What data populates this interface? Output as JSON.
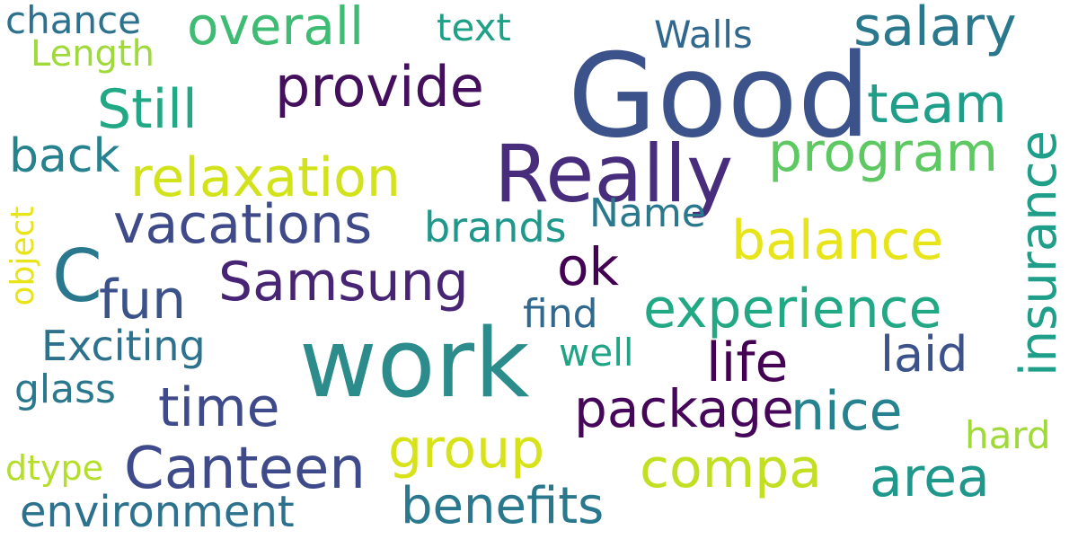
{
  "words": {
    "good": {
      "text": "Good",
      "color": "#3b528b"
    },
    "really": {
      "text": "Really",
      "color": "#472d7b"
    },
    "work": {
      "text": "work",
      "color": "#2c8c8c"
    },
    "c": {
      "text": "C",
      "color": "#2a788e"
    },
    "samsung": {
      "text": "Samsung",
      "color": "#482475"
    },
    "canteen": {
      "text": "Canteen",
      "color": "#3e4a89"
    },
    "vacations": {
      "text": "vacations",
      "color": "#3e4a89"
    },
    "relaxation": {
      "text": "relaxation",
      "color": "#d2e21b"
    },
    "overall": {
      "text": "overall",
      "color": "#3fbc73"
    },
    "provide": {
      "text": "provide",
      "color": "#440f5c"
    },
    "still": {
      "text": "Still",
      "color": "#22a884"
    },
    "salary": {
      "text": "salary",
      "color": "#2a788e"
    },
    "team": {
      "text": "team",
      "color": "#1f9e89"
    },
    "program": {
      "text": "program",
      "color": "#5ec962"
    },
    "insurance": {
      "text": "insurance",
      "color": "#1f9e89"
    },
    "balance": {
      "text": "balance",
      "color": "#e7e419"
    },
    "experience": {
      "text": "experience",
      "color": "#22a884"
    },
    "life": {
      "text": "life",
      "color": "#440154"
    },
    "package": {
      "text": "package",
      "color": "#46075a"
    },
    "nice": {
      "text": "nice",
      "color": "#26828e"
    },
    "laid": {
      "text": "laid",
      "color": "#3b528b"
    },
    "area": {
      "text": "area",
      "color": "#1f988b"
    },
    "compa": {
      "text": "compa",
      "color": "#c2df23"
    },
    "group": {
      "text": "group",
      "color": "#d8e219"
    },
    "benefits": {
      "text": "benefits",
      "color": "#2a788e"
    },
    "environment": {
      "text": "environment",
      "color": "#2c728e"
    },
    "time": {
      "text": "time",
      "color": "#3e4a89"
    },
    "fun": {
      "text": "fun",
      "color": "#3b528b"
    },
    "exciting": {
      "text": "Exciting",
      "color": "#2c728e"
    },
    "glass": {
      "text": "glass",
      "color": "#2a788e"
    },
    "back": {
      "text": "back",
      "color": "#26828e"
    },
    "chance": {
      "text": "chance",
      "color": "#2c728e"
    },
    "length": {
      "text": "Length",
      "color": "#9fda3a"
    },
    "text": {
      "text": "text",
      "color": "#1fa187"
    },
    "walls": {
      "text": "Walls",
      "color": "#31688e"
    },
    "brands": {
      "text": "brands",
      "color": "#1f988b"
    },
    "name": {
      "text": "Name",
      "color": "#2a788e"
    },
    "ok": {
      "text": "ok",
      "color": "#440154"
    },
    "find": {
      "text": "find",
      "color": "#31688e"
    },
    "well": {
      "text": "well",
      "color": "#20a486"
    },
    "hard": {
      "text": "hard",
      "color": "#a0da39"
    },
    "dtype": {
      "text": "dtype",
      "color": "#b5de2b"
    },
    "object": {
      "text": "object",
      "color": "#e8e419"
    }
  }
}
